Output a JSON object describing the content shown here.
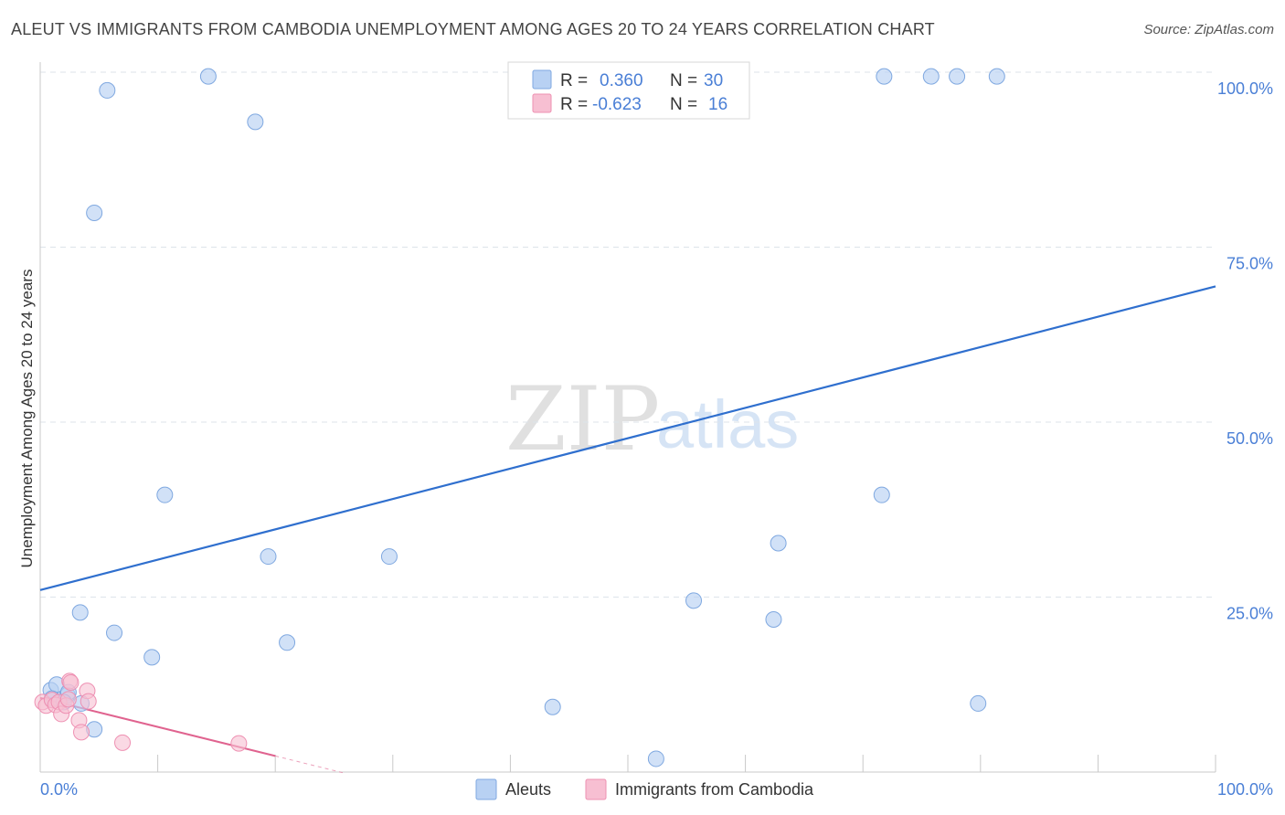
{
  "header": {
    "title": "ALEUT VS IMMIGRANTS FROM CAMBODIA UNEMPLOYMENT AMONG AGES 20 TO 24 YEARS CORRELATION CHART",
    "source": "Source: ZipAtlas.com"
  },
  "watermark": {
    "part1": "ZIP",
    "part2": "atlas"
  },
  "legend": {
    "aleut": {
      "r_label": "R =",
      "r_value": "0.360",
      "n_label": "N =",
      "n_value": "30"
    },
    "cambodia": {
      "r_label": "R =",
      "r_value": "-0.623",
      "n_label": "N =",
      "n_value": "16"
    }
  },
  "colors": {
    "aleut_fill": "#b8d1f3",
    "aleut_stroke": "#7fa8e0",
    "aleut_line": "#2f6fce",
    "cambodia_fill": "#f7bfd2",
    "cambodia_stroke": "#ee90b2",
    "cambodia_line": "#e0638f",
    "tick_text": "#4a7fd6",
    "grid": "#dde3ea"
  },
  "chart_data": {
    "type": "scatter",
    "title": "ALEUT VS IMMIGRANTS FROM CAMBODIA UNEMPLOYMENT AMONG AGES 20 TO 24 YEARS CORRELATION CHART",
    "xlabel": "",
    "ylabel": "Unemployment Among Ages 20 to 24 years",
    "xlim": [
      0,
      100
    ],
    "ylim": [
      0,
      100
    ],
    "x_tick_labels": [
      "0.0%",
      "100.0%"
    ],
    "y_ticks": [
      25,
      50,
      75,
      100
    ],
    "y_tick_labels": [
      "25.0%",
      "50.0%",
      "75.0%",
      "100.0%"
    ],
    "grid": true,
    "series": [
      {
        "name": "Aleuts",
        "points": [
          [
            0.9,
            11.7
          ],
          [
            1.4,
            12.5
          ],
          [
            2.3,
            11.0
          ],
          [
            2.4,
            11.4
          ],
          [
            3.5,
            9.8
          ],
          [
            3.4,
            22.8
          ],
          [
            4.6,
            6.1
          ],
          [
            4.6,
            79.9
          ],
          [
            5.7,
            97.4
          ],
          [
            6.3,
            19.9
          ],
          [
            9.5,
            16.4
          ],
          [
            10.6,
            39.6
          ],
          [
            14.3,
            99.4
          ],
          [
            18.3,
            92.9
          ],
          [
            19.4,
            30.8
          ],
          [
            21.0,
            18.5
          ],
          [
            29.7,
            30.8
          ],
          [
            43.6,
            9.3
          ],
          [
            52.4,
            1.9
          ],
          [
            55.6,
            24.5
          ],
          [
            62.4,
            21.8
          ],
          [
            62.8,
            32.7
          ],
          [
            71.6,
            39.6
          ],
          [
            71.8,
            99.4
          ],
          [
            75.8,
            99.4
          ],
          [
            78.0,
            99.4
          ],
          [
            79.8,
            9.8
          ],
          [
            81.4,
            99.4
          ],
          [
            1.0,
            10.5
          ],
          [
            2.0,
            10.0
          ]
        ],
        "trend": {
          "x0": 0,
          "y0": 26.0,
          "x1": 100,
          "y1": 69.4
        }
      },
      {
        "name": "Immigrants from Cambodia",
        "points": [
          [
            0.2,
            10.0
          ],
          [
            0.5,
            9.5
          ],
          [
            1.0,
            10.3
          ],
          [
            1.3,
            9.6
          ],
          [
            1.6,
            10.0
          ],
          [
            1.8,
            8.3
          ],
          [
            2.2,
            9.5
          ],
          [
            2.4,
            10.4
          ],
          [
            2.5,
            13.0
          ],
          [
            2.6,
            12.8
          ],
          [
            3.3,
            7.4
          ],
          [
            3.5,
            5.7
          ],
          [
            4.0,
            11.6
          ],
          [
            4.1,
            10.1
          ],
          [
            7.0,
            4.2
          ],
          [
            16.9,
            4.1
          ]
        ],
        "trend": {
          "x0": 0,
          "y0": 10.6,
          "x1": 20,
          "y1": 2.3
        },
        "trend_dashed": {
          "x0": 20,
          "y0": 2.3,
          "x1": 26,
          "y1": -0.2
        }
      }
    ]
  },
  "bottom_legend": {
    "aleut": "Aleuts",
    "cambodia": "Immigrants from Cambodia"
  }
}
